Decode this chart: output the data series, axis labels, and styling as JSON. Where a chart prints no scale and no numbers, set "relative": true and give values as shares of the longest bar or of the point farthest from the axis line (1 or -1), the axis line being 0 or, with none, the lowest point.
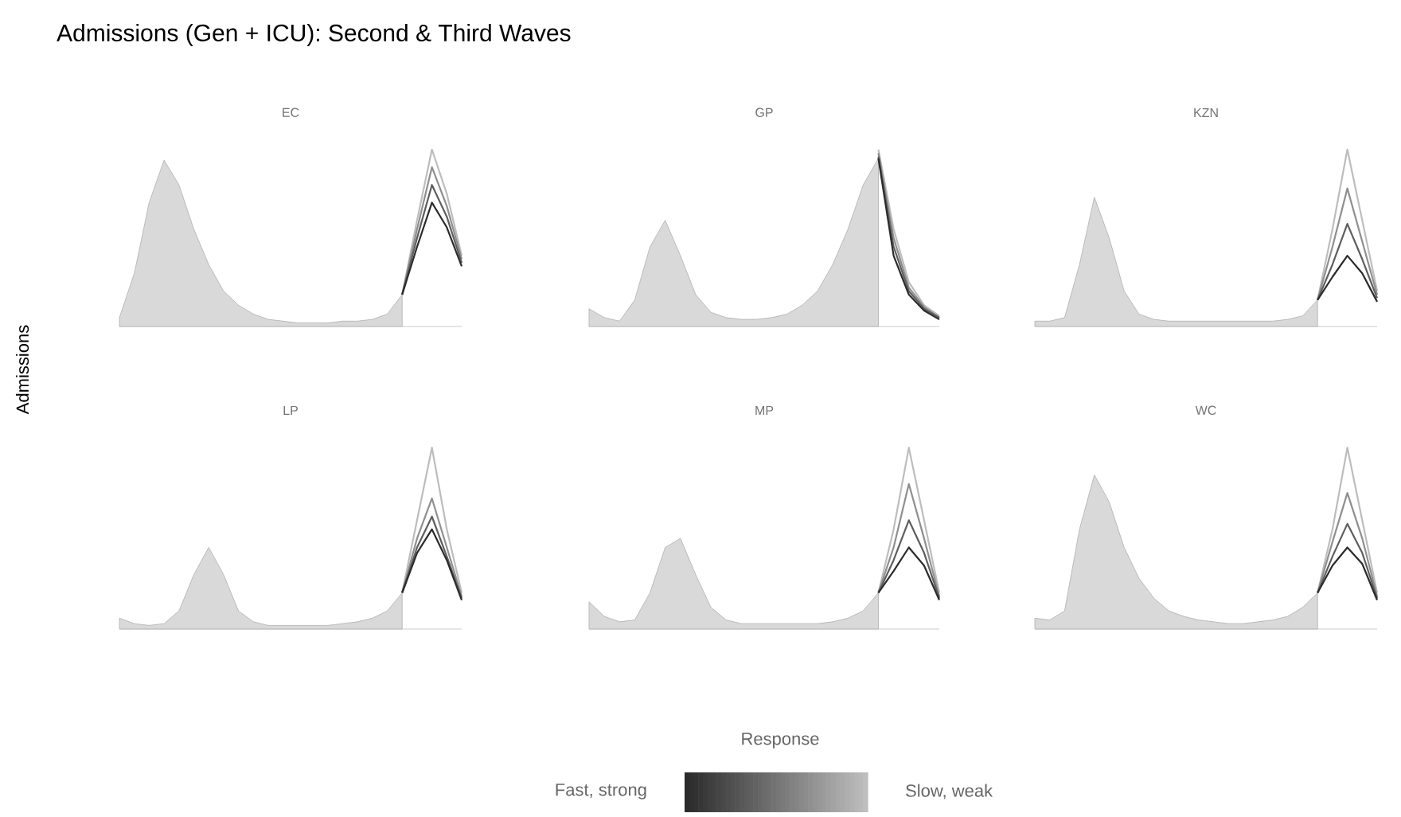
{
  "chart_data": [
    {
      "type": "area",
      "title": "EC",
      "relative": true,
      "categories": [
        null,
        null,
        null,
        null,
        null,
        null,
        null,
        null,
        null,
        null,
        null,
        null,
        null,
        null,
        null,
        null,
        null,
        null,
        null,
        null,
        null,
        null,
        null,
        null
      ],
      "series": [
        {
          "color": "#d9d9d9",
          "values": [
            0.05,
            0.3,
            0.7,
            0.94,
            0.8,
            0.55,
            0.35,
            0.2,
            0.12,
            0.07,
            0.04,
            0.03,
            0.02,
            0.02,
            0.02,
            0.03,
            0.03,
            0.04,
            0.07,
            0.18,
            null,
            null,
            null,
            null
          ]
        },
        {
          "type": "line",
          "color": "#bdbdbd",
          "values": [
            null,
            null,
            null,
            null,
            null,
            null,
            null,
            null,
            null,
            null,
            null,
            null,
            null,
            null,
            null,
            null,
            null,
            null,
            null,
            0.18,
            0.6,
            1.0,
            0.75,
            0.4
          ]
        },
        {
          "type": "line",
          "color": "#8f8f8f",
          "values": [
            null,
            null,
            null,
            null,
            null,
            null,
            null,
            null,
            null,
            null,
            null,
            null,
            null,
            null,
            null,
            null,
            null,
            null,
            null,
            0.18,
            0.55,
            0.9,
            0.68,
            0.38
          ]
        },
        {
          "type": "line",
          "color": "#5e5e5e",
          "values": [
            null,
            null,
            null,
            null,
            null,
            null,
            null,
            null,
            null,
            null,
            null,
            null,
            null,
            null,
            null,
            null,
            null,
            null,
            null,
            0.18,
            0.5,
            0.8,
            0.62,
            0.36
          ]
        },
        {
          "type": "line",
          "color": "#2b2b2b",
          "values": [
            null,
            null,
            null,
            null,
            null,
            null,
            null,
            null,
            null,
            null,
            null,
            null,
            null,
            null,
            null,
            null,
            null,
            null,
            null,
            0.18,
            0.45,
            0.7,
            0.56,
            0.34
          ]
        }
      ]
    },
    {
      "type": "area",
      "title": "GP",
      "relative": true,
      "categories": [
        null,
        null,
        null,
        null,
        null,
        null,
        null,
        null,
        null,
        null,
        null,
        null,
        null,
        null,
        null,
        null,
        null,
        null,
        null,
        null,
        null,
        null,
        null,
        null
      ],
      "series": [
        {
          "color": "#d9d9d9",
          "values": [
            0.1,
            0.05,
            0.03,
            0.15,
            0.45,
            0.6,
            0.4,
            0.18,
            0.08,
            0.05,
            0.04,
            0.04,
            0.05,
            0.07,
            0.12,
            0.2,
            0.35,
            0.55,
            0.8,
            0.95,
            null,
            null,
            null,
            null
          ]
        },
        {
          "type": "line",
          "color": "#bdbdbd",
          "values": [
            null,
            null,
            null,
            null,
            null,
            null,
            null,
            null,
            null,
            null,
            null,
            null,
            null,
            null,
            null,
            null,
            null,
            null,
            null,
            1.0,
            0.55,
            0.25,
            0.12,
            0.06
          ]
        },
        {
          "type": "line",
          "color": "#8f8f8f",
          "values": [
            null,
            null,
            null,
            null,
            null,
            null,
            null,
            null,
            null,
            null,
            null,
            null,
            null,
            null,
            null,
            null,
            null,
            null,
            null,
            0.98,
            0.5,
            0.22,
            0.11,
            0.05
          ]
        },
        {
          "type": "line",
          "color": "#5e5e5e",
          "values": [
            null,
            null,
            null,
            null,
            null,
            null,
            null,
            null,
            null,
            null,
            null,
            null,
            null,
            null,
            null,
            null,
            null,
            null,
            null,
            0.96,
            0.45,
            0.2,
            0.1,
            0.05
          ]
        },
        {
          "type": "line",
          "color": "#2b2b2b",
          "values": [
            null,
            null,
            null,
            null,
            null,
            null,
            null,
            null,
            null,
            null,
            null,
            null,
            null,
            null,
            null,
            null,
            null,
            null,
            null,
            0.95,
            0.4,
            0.18,
            0.09,
            0.04
          ]
        }
      ]
    },
    {
      "type": "area",
      "title": "KZN",
      "relative": true,
      "categories": [
        null,
        null,
        null,
        null,
        null,
        null,
        null,
        null,
        null,
        null,
        null,
        null,
        null,
        null,
        null,
        null,
        null,
        null,
        null,
        null,
        null,
        null,
        null,
        null
      ],
      "series": [
        {
          "color": "#d9d9d9",
          "values": [
            0.03,
            0.03,
            0.05,
            0.35,
            0.73,
            0.5,
            0.2,
            0.07,
            0.04,
            0.03,
            0.03,
            0.03,
            0.03,
            0.03,
            0.03,
            0.03,
            0.03,
            0.04,
            0.06,
            0.15,
            null,
            null,
            null,
            null
          ]
        },
        {
          "type": "line",
          "color": "#bdbdbd",
          "values": [
            null,
            null,
            null,
            null,
            null,
            null,
            null,
            null,
            null,
            null,
            null,
            null,
            null,
            null,
            null,
            null,
            null,
            null,
            null,
            0.15,
            0.55,
            1.0,
            0.6,
            0.2
          ]
        },
        {
          "type": "line",
          "color": "#8f8f8f",
          "values": [
            null,
            null,
            null,
            null,
            null,
            null,
            null,
            null,
            null,
            null,
            null,
            null,
            null,
            null,
            null,
            null,
            null,
            null,
            null,
            0.15,
            0.45,
            0.78,
            0.48,
            0.18
          ]
        },
        {
          "type": "line",
          "color": "#5e5e5e",
          "values": [
            null,
            null,
            null,
            null,
            null,
            null,
            null,
            null,
            null,
            null,
            null,
            null,
            null,
            null,
            null,
            null,
            null,
            null,
            null,
            0.15,
            0.35,
            0.58,
            0.38,
            0.16
          ]
        },
        {
          "type": "line",
          "color": "#2b2b2b",
          "values": [
            null,
            null,
            null,
            null,
            null,
            null,
            null,
            null,
            null,
            null,
            null,
            null,
            null,
            null,
            null,
            null,
            null,
            null,
            null,
            0.15,
            0.28,
            0.4,
            0.3,
            0.14
          ]
        }
      ]
    },
    {
      "type": "area",
      "title": "LP",
      "relative": true,
      "categories": [
        null,
        null,
        null,
        null,
        null,
        null,
        null,
        null,
        null,
        null,
        null,
        null,
        null,
        null,
        null,
        null,
        null,
        null,
        null,
        null,
        null,
        null,
        null,
        null
      ],
      "series": [
        {
          "color": "#d9d9d9",
          "values": [
            0.06,
            0.03,
            0.02,
            0.03,
            0.1,
            0.3,
            0.45,
            0.3,
            0.1,
            0.04,
            0.02,
            0.02,
            0.02,
            0.02,
            0.02,
            0.03,
            0.04,
            0.06,
            0.1,
            0.2,
            null,
            null,
            null,
            null
          ]
        },
        {
          "type": "line",
          "color": "#bdbdbd",
          "values": [
            null,
            null,
            null,
            null,
            null,
            null,
            null,
            null,
            null,
            null,
            null,
            null,
            null,
            null,
            null,
            null,
            null,
            null,
            null,
            0.2,
            0.6,
            1.0,
            0.55,
            0.2
          ]
        },
        {
          "type": "line",
          "color": "#8f8f8f",
          "values": [
            null,
            null,
            null,
            null,
            null,
            null,
            null,
            null,
            null,
            null,
            null,
            null,
            null,
            null,
            null,
            null,
            null,
            null,
            null,
            0.2,
            0.5,
            0.72,
            0.45,
            0.18
          ]
        },
        {
          "type": "line",
          "color": "#5e5e5e",
          "values": [
            null,
            null,
            null,
            null,
            null,
            null,
            null,
            null,
            null,
            null,
            null,
            null,
            null,
            null,
            null,
            null,
            null,
            null,
            null,
            0.2,
            0.45,
            0.62,
            0.4,
            0.17
          ]
        },
        {
          "type": "line",
          "color": "#2b2b2b",
          "values": [
            null,
            null,
            null,
            null,
            null,
            null,
            null,
            null,
            null,
            null,
            null,
            null,
            null,
            null,
            null,
            null,
            null,
            null,
            null,
            0.2,
            0.42,
            0.55,
            0.38,
            0.16
          ]
        }
      ]
    },
    {
      "type": "area",
      "title": "MP",
      "relative": true,
      "categories": [
        null,
        null,
        null,
        null,
        null,
        null,
        null,
        null,
        null,
        null,
        null,
        null,
        null,
        null,
        null,
        null,
        null,
        null,
        null,
        null,
        null,
        null,
        null,
        null
      ],
      "series": [
        {
          "color": "#d9d9d9",
          "values": [
            0.15,
            0.07,
            0.04,
            0.05,
            0.2,
            0.45,
            0.5,
            0.3,
            0.12,
            0.05,
            0.03,
            0.03,
            0.03,
            0.03,
            0.03,
            0.03,
            0.04,
            0.06,
            0.1,
            0.2,
            null,
            null,
            null,
            null
          ]
        },
        {
          "type": "line",
          "color": "#bdbdbd",
          "values": [
            null,
            null,
            null,
            null,
            null,
            null,
            null,
            null,
            null,
            null,
            null,
            null,
            null,
            null,
            null,
            null,
            null,
            null,
            null,
            0.2,
            0.55,
            1.0,
            0.6,
            0.2
          ]
        },
        {
          "type": "line",
          "color": "#8f8f8f",
          "values": [
            null,
            null,
            null,
            null,
            null,
            null,
            null,
            null,
            null,
            null,
            null,
            null,
            null,
            null,
            null,
            null,
            null,
            null,
            null,
            0.2,
            0.45,
            0.8,
            0.5,
            0.18
          ]
        },
        {
          "type": "line",
          "color": "#5e5e5e",
          "values": [
            null,
            null,
            null,
            null,
            null,
            null,
            null,
            null,
            null,
            null,
            null,
            null,
            null,
            null,
            null,
            null,
            null,
            null,
            null,
            0.2,
            0.38,
            0.6,
            0.42,
            0.17
          ]
        },
        {
          "type": "line",
          "color": "#2b2b2b",
          "values": [
            null,
            null,
            null,
            null,
            null,
            null,
            null,
            null,
            null,
            null,
            null,
            null,
            null,
            null,
            null,
            null,
            null,
            null,
            null,
            0.2,
            0.32,
            0.45,
            0.35,
            0.16
          ]
        }
      ]
    },
    {
      "type": "area",
      "title": "WC",
      "relative": true,
      "categories": [
        null,
        null,
        null,
        null,
        null,
        null,
        null,
        null,
        null,
        null,
        null,
        null,
        null,
        null,
        null,
        null,
        null,
        null,
        null,
        null,
        null,
        null,
        null,
        null
      ],
      "series": [
        {
          "color": "#d9d9d9",
          "values": [
            0.06,
            0.05,
            0.1,
            0.55,
            0.85,
            0.7,
            0.45,
            0.28,
            0.17,
            0.1,
            0.07,
            0.05,
            0.04,
            0.03,
            0.03,
            0.04,
            0.05,
            0.07,
            0.12,
            0.2,
            null,
            null,
            null,
            null
          ]
        },
        {
          "type": "line",
          "color": "#bdbdbd",
          "values": [
            null,
            null,
            null,
            null,
            null,
            null,
            null,
            null,
            null,
            null,
            null,
            null,
            null,
            null,
            null,
            null,
            null,
            null,
            null,
            0.2,
            0.55,
            1.0,
            0.6,
            0.2
          ]
        },
        {
          "type": "line",
          "color": "#8f8f8f",
          "values": [
            null,
            null,
            null,
            null,
            null,
            null,
            null,
            null,
            null,
            null,
            null,
            null,
            null,
            null,
            null,
            null,
            null,
            null,
            null,
            0.2,
            0.48,
            0.75,
            0.5,
            0.18
          ]
        },
        {
          "type": "line",
          "color": "#5e5e5e",
          "values": [
            null,
            null,
            null,
            null,
            null,
            null,
            null,
            null,
            null,
            null,
            null,
            null,
            null,
            null,
            null,
            null,
            null,
            null,
            null,
            0.2,
            0.4,
            0.58,
            0.42,
            0.17
          ]
        },
        {
          "type": "line",
          "color": "#2b2b2b",
          "values": [
            null,
            null,
            null,
            null,
            null,
            null,
            null,
            null,
            null,
            null,
            null,
            null,
            null,
            null,
            null,
            null,
            null,
            null,
            null,
            0.2,
            0.35,
            0.45,
            0.36,
            0.16
          ]
        }
      ]
    },
    {
      "type": "other",
      "title": "Admissions (Gen + ICU): Second & Third Waves",
      "ylabel": "Admissions",
      "legend_title": "Response",
      "annotations": [
        "Fast, strong",
        "Slow, weak"
      ]
    }
  ]
}
